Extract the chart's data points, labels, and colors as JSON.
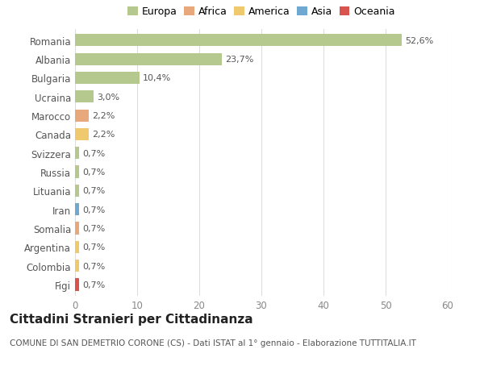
{
  "countries": [
    "Romania",
    "Albania",
    "Bulgaria",
    "Ucraina",
    "Marocco",
    "Canada",
    "Svizzera",
    "Russia",
    "Lituania",
    "Iran",
    "Somalia",
    "Argentina",
    "Colombia",
    "Figi"
  ],
  "values": [
    52.6,
    23.7,
    10.4,
    3.0,
    2.2,
    2.2,
    0.7,
    0.7,
    0.7,
    0.7,
    0.7,
    0.7,
    0.7,
    0.7
  ],
  "labels": [
    "52,6%",
    "23,7%",
    "10,4%",
    "3,0%",
    "2,2%",
    "2,2%",
    "0,7%",
    "0,7%",
    "0,7%",
    "0,7%",
    "0,7%",
    "0,7%",
    "0,7%",
    "0,7%"
  ],
  "colors": [
    "#b5c98e",
    "#b5c98e",
    "#b5c98e",
    "#b5c98e",
    "#e8a87c",
    "#f0c96e",
    "#b5c98e",
    "#b5c98e",
    "#b5c98e",
    "#6fa8d0",
    "#e8a87c",
    "#f0c96e",
    "#f0c96e",
    "#d9534f"
  ],
  "continent_colors": {
    "Europa": "#b5c98e",
    "Africa": "#e8a87c",
    "America": "#f0c96e",
    "Asia": "#6fa8d0",
    "Oceania": "#d9534f"
  },
  "xlim": [
    0,
    60
  ],
  "xticks": [
    0,
    10,
    20,
    30,
    40,
    50,
    60
  ],
  "title": "Cittadini Stranieri per Cittadinanza",
  "subtitle": "COMUNE DI SAN DEMETRIO CORONE (CS) - Dati ISTAT al 1° gennaio - Elaborazione TUTTITALIA.IT",
  "bg_color": "#ffffff",
  "grid_color": "#dddddd",
  "bar_height": 0.65,
  "title_fontsize": 11,
  "subtitle_fontsize": 7.5,
  "label_fontsize": 8,
  "tick_fontsize": 8.5,
  "legend_fontsize": 9
}
